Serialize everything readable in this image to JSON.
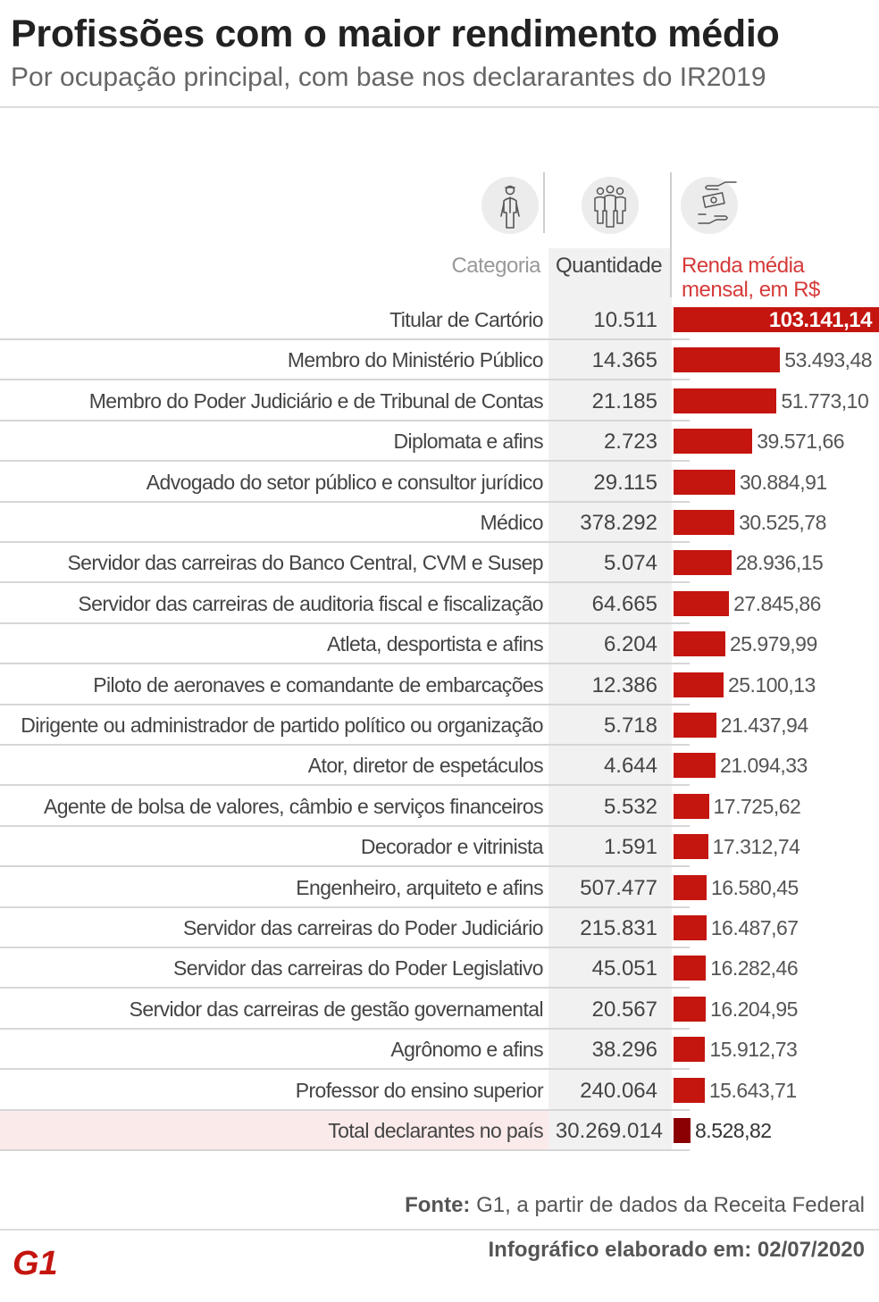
{
  "header": {
    "title": "Profissões com o maior rendimento médio",
    "subtitle": "Por ocupação principal, com base nos declararantes do IR2019"
  },
  "columns": {
    "categoria": "Categoria",
    "quantidade": "Quantidade",
    "renda": "Renda média mensal, em R$"
  },
  "icons": [
    "worker-icon",
    "people-group-icon",
    "money-hands-icon"
  ],
  "colors": {
    "bar": "#c4150f",
    "total_bar": "#8b0000",
    "renda_header": "#d63a3a",
    "total_band": "#fbeaea"
  },
  "chart_data": {
    "type": "bar",
    "orientation": "horizontal",
    "title": "Profissões com o maior rendimento médio",
    "subtitle": "Por ocupação principal, com base nos declararantes do IR2019",
    "xlabel": "Renda média mensal, em R$",
    "rows": [
      {
        "category": "Titular de Cartório",
        "quantidade": "10.511",
        "value": 103141.14,
        "value_label": "103.141,14"
      },
      {
        "category": "Membro do Ministério Público",
        "quantidade": "14.365",
        "value": 53493.48,
        "value_label": "53.493,48"
      },
      {
        "category": "Membro do Poder Judiciário e de Tribunal de Contas",
        "quantidade": "21.185",
        "value": 51773.1,
        "value_label": "51.773,10"
      },
      {
        "category": "Diplomata e afins",
        "quantidade": "2.723",
        "value": 39571.66,
        "value_label": "39.571,66"
      },
      {
        "category": "Advogado do setor público e consultor jurídico",
        "quantidade": "29.115",
        "value": 30884.91,
        "value_label": "30.884,91"
      },
      {
        "category": "Médico",
        "quantidade": "378.292",
        "value": 30525.78,
        "value_label": "30.525,78"
      },
      {
        "category": "Servidor das carreiras do Banco Central, CVM e Susep",
        "quantidade": "5.074",
        "value": 28936.15,
        "value_label": "28.936,15"
      },
      {
        "category": "Servidor das carreiras de auditoria fiscal e fiscalização",
        "quantidade": "64.665",
        "value": 27845.86,
        "value_label": "27.845,86"
      },
      {
        "category": "Atleta, desportista e afins",
        "quantidade": "6.204",
        "value": 25979.99,
        "value_label": "25.979,99"
      },
      {
        "category": "Piloto de aeronaves e comandante de embarcações",
        "quantidade": "12.386",
        "value": 25100.13,
        "value_label": "25.100,13"
      },
      {
        "category": "Dirigente ou administrador de partido político ou organização",
        "quantidade": "5.718",
        "value": 21437.94,
        "value_label": "21.437,94"
      },
      {
        "category": "Ator, diretor de espetáculos",
        "quantidade": "4.644",
        "value": 21094.33,
        "value_label": "21.094,33"
      },
      {
        "category": "Agente de bolsa de valores, câmbio e serviços financeiros",
        "quantidade": "5.532",
        "value": 17725.62,
        "value_label": "17.725,62"
      },
      {
        "category": "Decorador e vitrinista",
        "quantidade": "1.591",
        "value": 17312.74,
        "value_label": "17.312,74"
      },
      {
        "category": "Engenheiro, arquiteto e afins",
        "quantidade": "507.477",
        "value": 16580.45,
        "value_label": "16.580,45"
      },
      {
        "category": "Servidor das carreiras do Poder Judiciário",
        "quantidade": "215.831",
        "value": 16487.67,
        "value_label": "16.487,67"
      },
      {
        "category": "Servidor das carreiras do Poder Legislativo",
        "quantidade": "45.051",
        "value": 16282.46,
        "value_label": "16.282,46"
      },
      {
        "category": "Servidor das carreiras de gestão governamental",
        "quantidade": "20.567",
        "value": 16204.95,
        "value_label": "16.204,95"
      },
      {
        "category": "Agrônomo e afins",
        "quantidade": "38.296",
        "value": 15912.73,
        "value_label": "15.912,73"
      },
      {
        "category": "Professor do ensino superior",
        "quantidade": "240.064",
        "value": 15643.71,
        "value_label": "15.643,71"
      }
    ],
    "total": {
      "category": "Total declarantes no país",
      "quantidade": "30.269.014",
      "value": 8528.82,
      "value_label": "8.528,82"
    },
    "legend": "none",
    "grid": false
  },
  "footer": {
    "source_label": "Fonte:",
    "source_text": "G1, a partir de dados da Receita Federal",
    "date_label": "Infográfico elaborado em:",
    "date_text": "02/07/2020",
    "logo": "G1"
  }
}
